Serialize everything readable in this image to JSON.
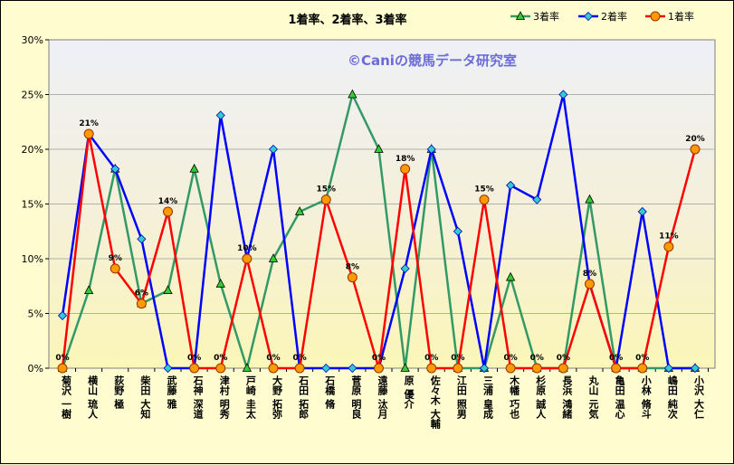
{
  "chart_data": {
    "type": "line",
    "title": "1着率、2着率、3着率",
    "watermark": "©Caniの競馬データ研究室",
    "ylim": [
      0,
      30
    ],
    "yticks": [
      "0%",
      "5%",
      "10%",
      "15%",
      "20%",
      "25%",
      "30%"
    ],
    "grid": "horizontal",
    "legend_position": "top-right",
    "categories": [
      "菊沢 一樹",
      "横山 琉人",
      "荻野 極",
      "柴田 大知",
      "武藤 雅",
      "石神 深道",
      "津村 明秀",
      "戸崎 圭太",
      "大野 拓弥",
      "石田 拓郎",
      "石橋 脩",
      "菅原 明良",
      "遠藤 汰月",
      "原 優介",
      "佐々木 大輔",
      "江田 照男",
      "三浦 皇成",
      "木幡 巧也",
      "杉原 誠人",
      "長浜 鴻緒",
      "丸山 元気",
      "亀田 温心",
      "小林 脩斗",
      "嶋田 純次",
      "小沢 大仁"
    ],
    "series": [
      {
        "name": "3着率",
        "color": "#339966",
        "marker": "triangle",
        "marker_fill": "#33cc33",
        "values": [
          0,
          7.1,
          18.2,
          5.9,
          7.1,
          18.2,
          7.7,
          0,
          10,
          14.3,
          15.4,
          25,
          20,
          0,
          20,
          0,
          0,
          8.3,
          0,
          0,
          15.4,
          0,
          0,
          0,
          0
        ]
      },
      {
        "name": "2着率",
        "color": "#0000ff",
        "marker": "diamond",
        "marker_fill": "#33cccc",
        "values": [
          4.8,
          21.4,
          18.2,
          11.8,
          0,
          0,
          23.1,
          10,
          20,
          0,
          0,
          0,
          0,
          9.1,
          20,
          12.5,
          0,
          16.7,
          15.4,
          25,
          7.7,
          0,
          14.3,
          0,
          0
        ]
      },
      {
        "name": "1着率",
        "color": "#ff0000",
        "marker": "circle",
        "marker_fill": "#ff9900",
        "values": [
          0,
          21.4,
          9.1,
          5.9,
          14.3,
          0,
          0,
          10,
          0,
          0,
          15.4,
          8.3,
          0,
          18.2,
          0,
          0,
          15.4,
          0,
          0,
          0,
          7.7,
          0,
          0,
          11.1,
          20
        ],
        "data_labels": [
          "0%",
          "21%",
          "9%",
          "6%",
          "14%",
          "0%",
          "0%",
          "10%",
          "0%",
          "0%",
          "15%",
          "8%",
          "0%",
          "18%",
          "0%",
          "0%",
          "15%",
          "0%",
          "0%",
          "0%",
          "8%",
          "0%",
          "0%",
          "11%",
          "20%"
        ]
      }
    ],
    "legend_order": [
      "3着率",
      "2着率",
      "1着率"
    ]
  }
}
